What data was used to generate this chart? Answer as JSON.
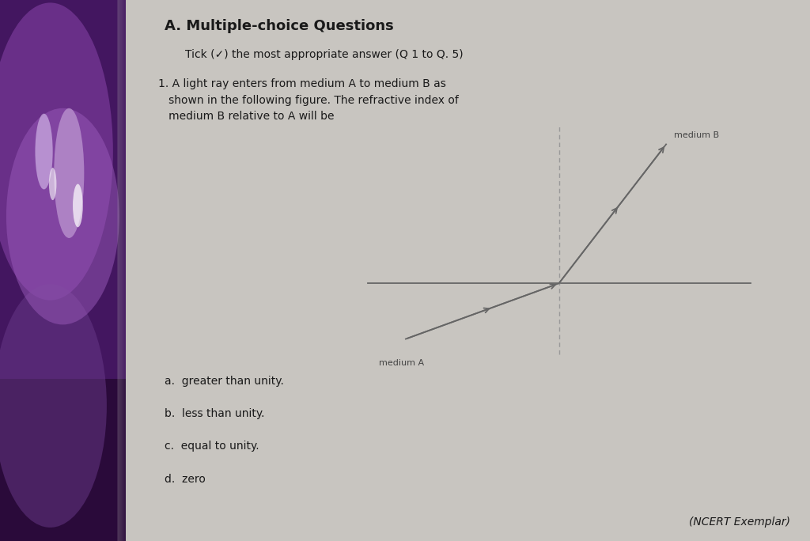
{
  "bg_color": "#c8c5c0",
  "page_color": "#dddbd7",
  "left_photo_color1": "#5a2a7a",
  "left_photo_color2": "#3a1a5a",
  "fold_color": "#e8e6e2",
  "text_color": "#1a1a1a",
  "title": "A. Multiple-choice Questions",
  "subtitle": "Tick (✓) the most appropriate answer (Q 1 to Q. 5)",
  "question_num": "1.",
  "question_body": " A light ray enters from medium A to medium B as\n   shown in the following figure. The refractive index of\n   medium B relative to A will be",
  "options": [
    "a.  greater than unity.",
    "b.  less than unity.",
    "c.  equal to unity.",
    "d.  zero"
  ],
  "ncert_text": "(NCERT Exemplar)",
  "line_color": "#666666",
  "dashed_color": "#999999",
  "label_color": "#444444",
  "medium_A_text": "medium A",
  "medium_B_text": "medium B",
  "title_fontsize": 13,
  "subtitle_fontsize": 10,
  "question_fontsize": 10,
  "option_fontsize": 10,
  "ncert_fontsize": 10,
  "label_fontsize": 8
}
